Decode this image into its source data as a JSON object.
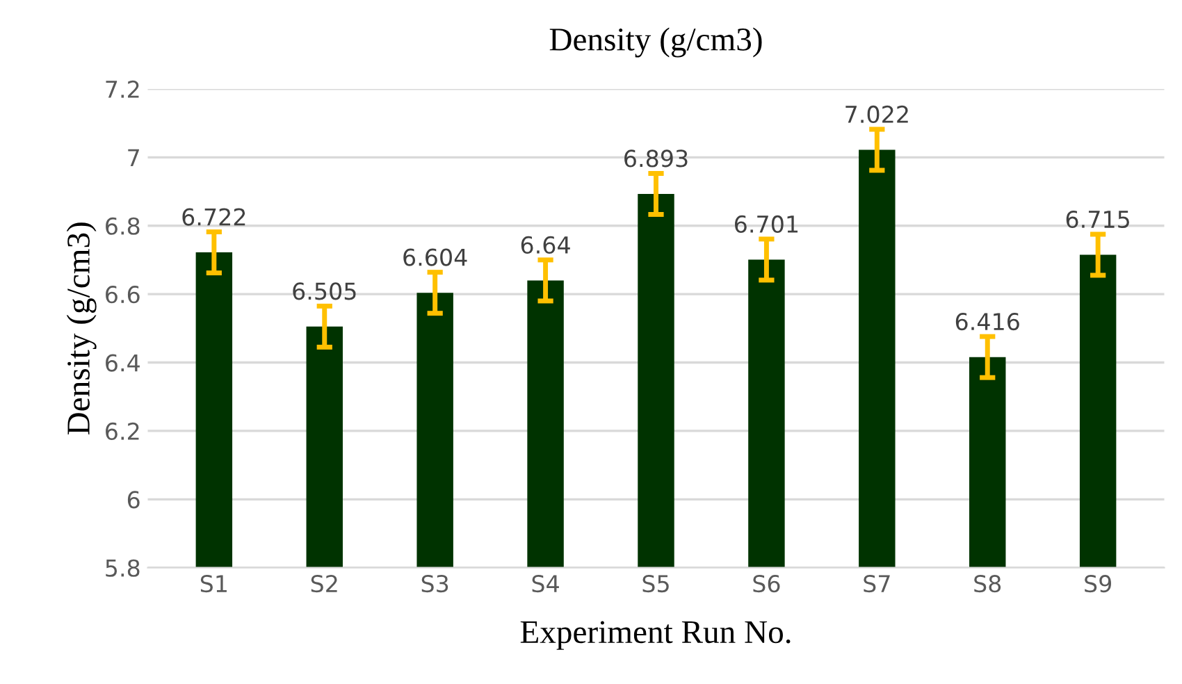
{
  "chart_data": {
    "type": "bar",
    "title": "Density (g/cm3)",
    "xlabel": "Experiment Run No.",
    "ylabel": "Density (g/cm3)",
    "categories": [
      "S1",
      "S2",
      "S3",
      "S4",
      "S5",
      "S6",
      "S7",
      "S8",
      "S9"
    ],
    "values": [
      6.722,
      6.505,
      6.604,
      6.64,
      6.893,
      6.701,
      7.022,
      6.416,
      6.715
    ],
    "errors": [
      0.06,
      0.06,
      0.06,
      0.06,
      0.06,
      0.06,
      0.06,
      0.06,
      0.06
    ],
    "color": "#003300",
    "ylim": [
      5.8,
      7.2
    ],
    "yticks": [
      {
        "value": 5.8,
        "label": "5.8"
      },
      {
        "value": 6,
        "label": "6"
      },
      {
        "value": 6.2,
        "label": "6.2"
      },
      {
        "value": 6.4,
        "label": "6.4"
      },
      {
        "value": 6.6,
        "label": "6.6"
      },
      {
        "value": 6.8,
        "label": "6.8"
      },
      {
        "value": 7,
        "label": "7"
      },
      {
        "value": 7.2,
        "label": "7.2"
      }
    ],
    "grid": "y",
    "data_labels": true
  }
}
